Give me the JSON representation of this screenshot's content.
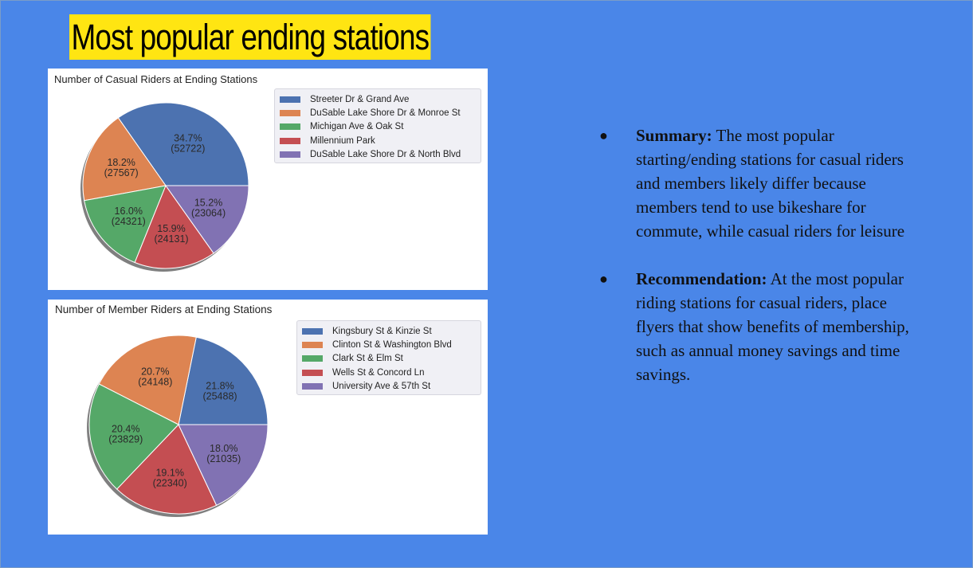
{
  "slide": {
    "title": "Most popular ending stations",
    "colors": {
      "background": "#4a86e8",
      "title_highlight": "#ffe512"
    }
  },
  "bullets": [
    {
      "heading": "Summary:",
      "text": "The most popular starting/ending stations for casual riders and members likely differ because members tend to use bikeshare for commute, while casual riders for leisure"
    },
    {
      "heading": "Recommendation:",
      "text": "At the most popular riding stations for casual riders, place flyers that show benefits of membership, such as annual money savings and time savings."
    }
  ],
  "chart_data": [
    {
      "type": "pie",
      "title": "Number of Casual Riders at Ending Stations",
      "legend_position": "top-right",
      "slices": [
        {
          "label": "Streeter Dr & Grand Ave",
          "value": 52722,
          "percent_label": "34.7%",
          "count_label": "(52722)",
          "color": "#4c72b0"
        },
        {
          "label": "DuSable Lake Shore Dr & Monroe St",
          "value": 27567,
          "percent_label": "18.2%",
          "count_label": "(27567)",
          "color": "#dd8452"
        },
        {
          "label": "Michigan Ave & Oak St",
          "value": 24321,
          "percent_label": "16.0%",
          "count_label": "(24321)",
          "color": "#55a868"
        },
        {
          "label": "Millennium Park",
          "value": 24131,
          "percent_label": "15.9%",
          "count_label": "(24131)",
          "color": "#c44e52"
        },
        {
          "label": "DuSable Lake Shore Dr & North Blvd",
          "value": 23064,
          "percent_label": "15.2%",
          "count_label": "(23064)",
          "color": "#8172b3"
        }
      ]
    },
    {
      "type": "pie",
      "title": "Number of Member Riders at Ending Stations",
      "legend_position": "top-right",
      "slices": [
        {
          "label": "Kingsbury St & Kinzie St",
          "value": 25488,
          "percent_label": "21.8%",
          "count_label": "(25488)",
          "color": "#4c72b0"
        },
        {
          "label": "Clinton St & Washington Blvd",
          "value": 24148,
          "percent_label": "20.7%",
          "count_label": "(24148)",
          "color": "#dd8452"
        },
        {
          "label": "Clark St & Elm St",
          "value": 23829,
          "percent_label": "20.4%",
          "count_label": "(23829)",
          "color": "#55a868"
        },
        {
          "label": "Wells St & Concord Ln",
          "value": 22340,
          "percent_label": "19.1%",
          "count_label": "(22340)",
          "color": "#c44e52"
        },
        {
          "label": "University Ave & 57th St",
          "value": 21035,
          "percent_label": "18.0%",
          "count_label": "(21035)",
          "color": "#8172b3"
        }
      ]
    }
  ]
}
